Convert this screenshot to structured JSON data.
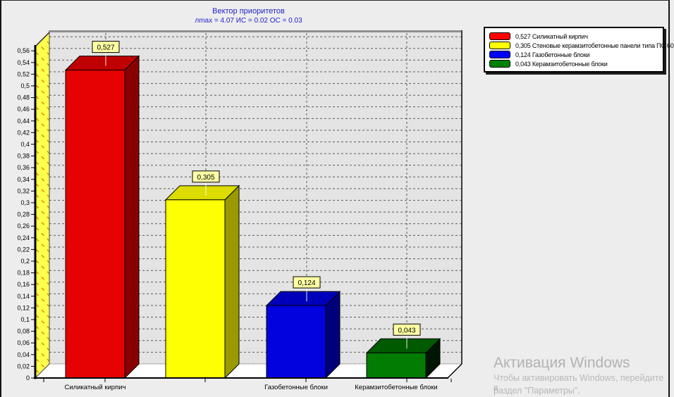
{
  "chart_data": {
    "type": "bar",
    "style": "3d-column",
    "title": "Вектор приоритетов",
    "subtitle": "лmax = 4.07 ИС = 0.02 ОС = 0.03",
    "categories": [
      "Силикатный кирпич",
      "Стеновые керамзитобетонные панели типа ПС 60",
      "Газобетонные блоки",
      "Керамзитобетонные блоки"
    ],
    "x_axis_labels_shown": [
      "Силикатный кирпич",
      "",
      "Газобетонные блоки",
      "Керамзитобетонные блоки"
    ],
    "values": [
      0.527,
      0.305,
      0.124,
      0.043
    ],
    "value_labels": [
      "0,527",
      "0,305",
      "0,124",
      "0,043"
    ],
    "bar_colors": [
      {
        "front": "#e60202",
        "top": "#c00000",
        "side": "#8a0000"
      },
      {
        "front": "#ffff04",
        "top": "#dcdc00",
        "side": "#9a9a00"
      },
      {
        "front": "#0202df",
        "top": "#0000ba",
        "side": "#00007a"
      },
      {
        "front": "#037c03",
        "top": "#005a00",
        "side": "#001604"
      }
    ],
    "ylim": [
      0,
      0.58
    ],
    "ytick_values": [
      0,
      0.02,
      0.04,
      0.06,
      0.08,
      0.1,
      0.12,
      0.14,
      0.16,
      0.18,
      0.2,
      0.22,
      0.24,
      0.26,
      0.28,
      0.3,
      0.32,
      0.34,
      0.36,
      0.38,
      0.4,
      0.42,
      0.44,
      0.46,
      0.48,
      0.5,
      0.52,
      0.54,
      0.56
    ],
    "ytick_labels": [
      "0",
      "0,02",
      "0,04",
      "0,06",
      "0,08",
      "0,1",
      "0,12",
      "0,14",
      "0,16",
      "0,18",
      "0,2",
      "0,22",
      "0,24",
      "0,26",
      "0,28",
      "0,3",
      "0,32",
      "0,34",
      "0,36",
      "0,38",
      "0,4",
      "0,42",
      "0,44",
      "0,46",
      "0,48",
      "0,5",
      "0,52",
      "0,54",
      "0,56"
    ],
    "grid": {
      "horizontal": "dashed",
      "color": "#5c5c5c",
      "legend_position": "top-right"
    },
    "walls": {
      "left": "#ffff4d",
      "left_hatch": "#c98c00",
      "back": "#e4e4e4",
      "floor": "#ffffff"
    },
    "value_box": {
      "bg": "#ffffa3",
      "border": "#000000"
    }
  },
  "legend": {
    "items": [
      {
        "color": "#ff0000",
        "label": "0,527 Силикатный кирпич"
      },
      {
        "color": "#ffff00",
        "label": "0,305 Стеновые керамзитобетонные панели типа ПС 60"
      },
      {
        "color": "#0000ff",
        "label": "0,124 Газобетонные блоки"
      },
      {
        "color": "#008000",
        "label": "0,043 Керамзитобетонные блоки"
      }
    ]
  },
  "watermark": {
    "line1": "Активация Windows",
    "line2": "Чтобы активировать Windows, перейдите в",
    "line3": "раздел \"Параметры\"."
  }
}
